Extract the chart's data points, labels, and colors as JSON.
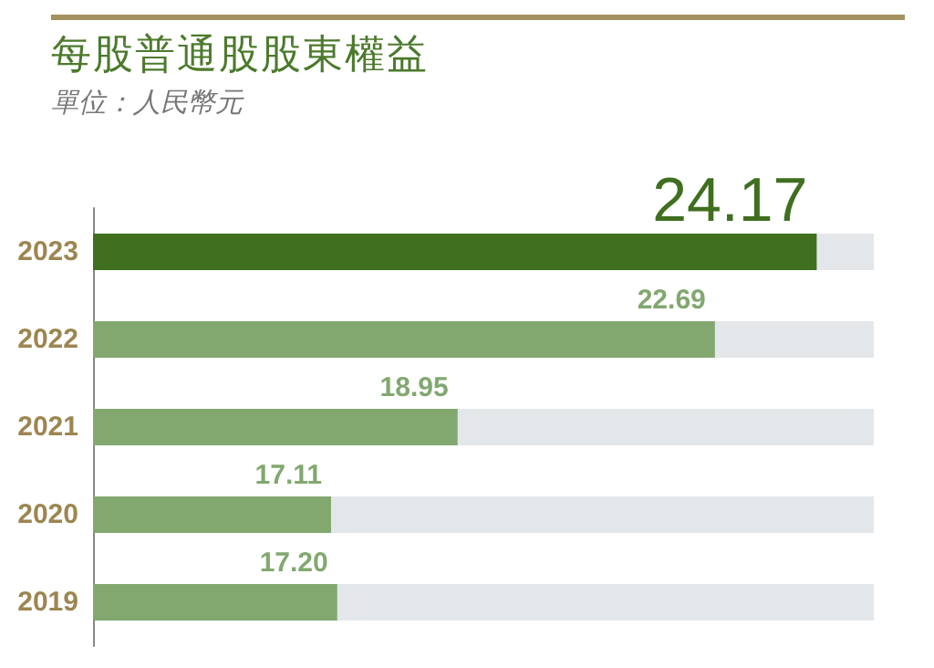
{
  "chart_data": {
    "type": "bar",
    "orientation": "horizontal",
    "title": "每股普通股股東權益",
    "subtitle": "單位：人民幣元",
    "categories": [
      "2023",
      "2022",
      "2021",
      "2020",
      "2019"
    ],
    "values": [
      24.17,
      22.69,
      18.95,
      17.11,
      17.2
    ],
    "colors": [
      "#3f6f1f",
      "#82a870",
      "#82a870",
      "#82a870",
      "#82a870"
    ],
    "value_labels": [
      "24.17",
      "22.69",
      "18.95",
      "17.11",
      "17.20"
    ],
    "xlim": [
      13.65,
      25
    ],
    "tick_labels": "y"
  }
}
